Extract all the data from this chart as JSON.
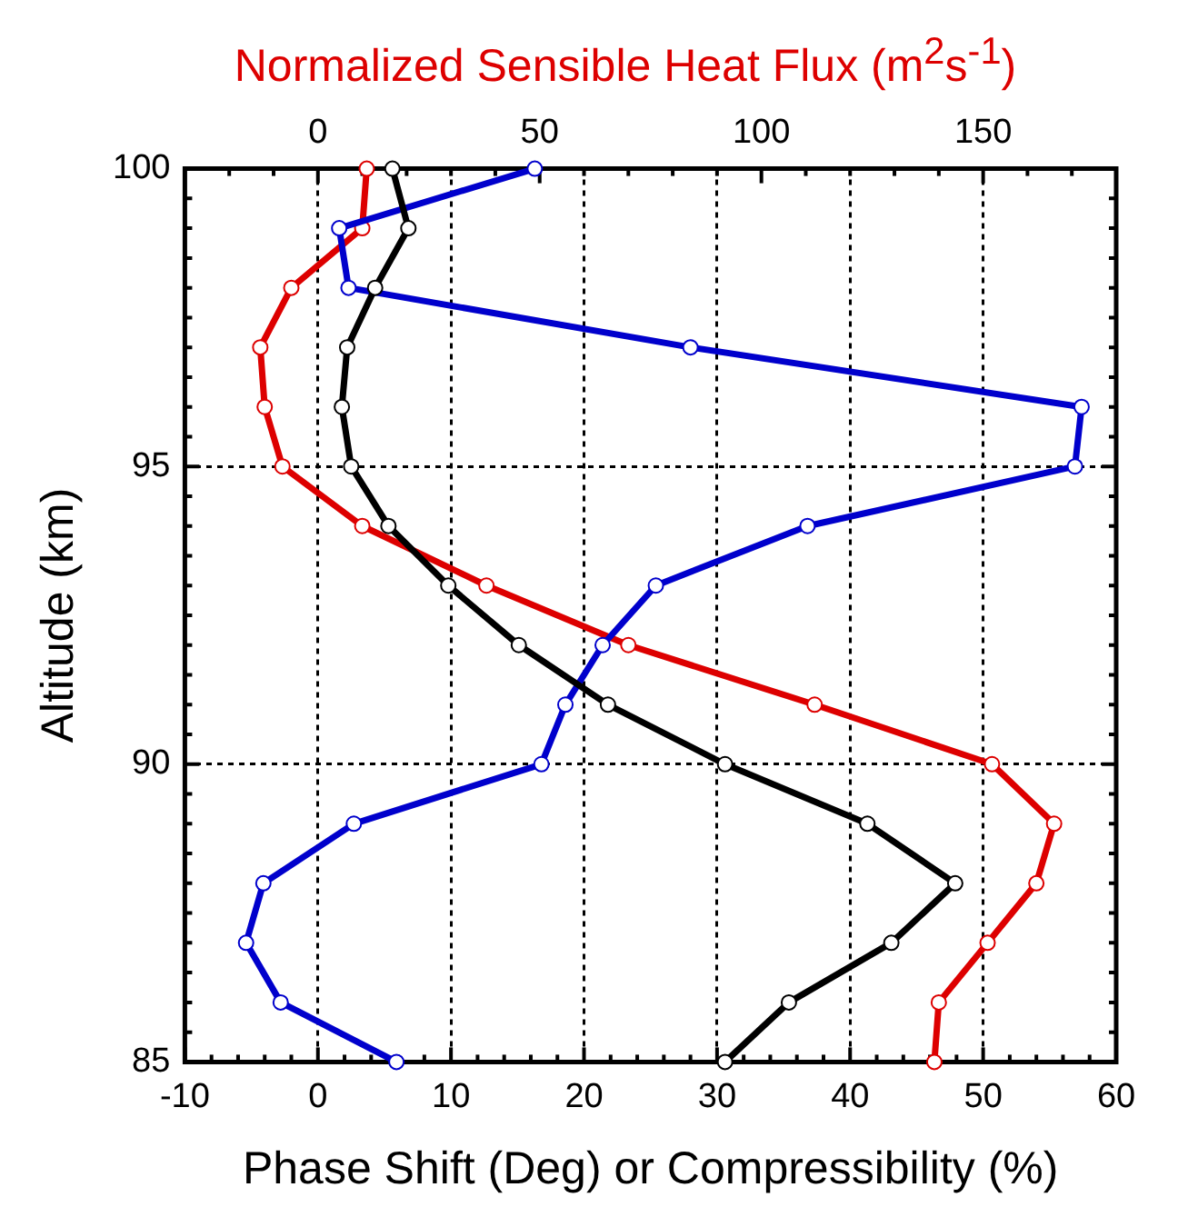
{
  "chart_data": {
    "type": "line",
    "x2label": "Normalized Sensible Heat Flux (m$^{2}$s$^{-1}$)",
    "xlabel": "Phase Shift (Deg) or Compressibility (%)",
    "ylabel": "Altitude (km)",
    "series": [
      {
        "color": "#000000",
        "x": [
          5.6,
          6.8,
          4.3,
          2.2,
          1.8,
          2.5,
          5.3,
          9.8,
          15.1,
          21.8,
          30.6,
          41.3,
          47.9,
          43.1,
          35.4,
          30.6
        ],
        "values": [
          100,
          99,
          98,
          97,
          96,
          95,
          94,
          93,
          92,
          91,
          90,
          89,
          88,
          87,
          86,
          85
        ]
      },
      {
        "color": "#0000cc",
        "x": [
          16.3,
          1.6,
          2.3,
          28.0,
          57.4,
          56.9,
          36.8,
          25.4,
          21.4,
          18.6,
          16.8,
          2.7,
          -4.1,
          -5.4,
          -2.8,
          5.9
        ],
        "values": [
          100,
          99,
          98,
          97,
          96,
          95,
          94,
          93,
          92,
          91,
          90,
          89,
          88,
          87,
          86,
          85
        ]
      },
      {
        "color": "#dd0000",
        "axis": "x2",
        "x": [
          11,
          10,
          -6,
          -13,
          -12,
          -8,
          10,
          38,
          70,
          112,
          152,
          166,
          162,
          151,
          140,
          139
        ],
        "values": [
          100,
          99,
          98,
          97,
          96,
          95,
          94,
          93,
          92,
          91,
          90,
          89,
          88,
          87,
          86,
          85
        ]
      }
    ],
    "xlim": [
      -10,
      60
    ],
    "xticks": [
      -10,
      {
        "value": -8,
        "label": null
      },
      {
        "value": -6,
        "label": null
      },
      {
        "value": -4,
        "label": null
      },
      {
        "value": -2,
        "label": null
      },
      0,
      {
        "value": 2,
        "label": null
      },
      {
        "value": 4,
        "label": null
      },
      {
        "value": 6,
        "label": null
      },
      {
        "value": 8,
        "label": null
      },
      10,
      {
        "value": 12,
        "label": null
      },
      {
        "value": 14,
        "label": null
      },
      {
        "value": 16,
        "label": null
      },
      {
        "value": 18,
        "label": null
      },
      20,
      {
        "value": 22,
        "label": null
      },
      {
        "value": 24,
        "label": null
      },
      {
        "value": 26,
        "label": null
      },
      {
        "value": 28,
        "label": null
      },
      30,
      {
        "value": 32,
        "label": null
      },
      {
        "value": 34,
        "label": null
      },
      {
        "value": 36,
        "label": null
      },
      {
        "value": 38,
        "label": null
      },
      40,
      {
        "value": 42,
        "label": null
      },
      {
        "value": 44,
        "label": null
      },
      {
        "value": 46,
        "label": null
      },
      {
        "value": 48,
        "label": null
      },
      50,
      {
        "value": 52,
        "label": null
      },
      {
        "value": 54,
        "label": null
      },
      {
        "value": 56,
        "label": null
      },
      {
        "value": 58,
        "label": null
      },
      60
    ],
    "x2lim": [
      -30,
      180
    ],
    "x2ticks": [
      {
        "value": -20,
        "label": null
      },
      {
        "value": -10,
        "label": null
      },
      0,
      {
        "value": 10,
        "label": null
      },
      {
        "value": 20,
        "label": null
      },
      {
        "value": 30,
        "label": null
      },
      {
        "value": 40,
        "label": null
      },
      50,
      {
        "value": 60,
        "label": null
      },
      {
        "value": 70,
        "label": null
      },
      {
        "value": 80,
        "label": null
      },
      {
        "value": 90,
        "label": null
      },
      100,
      {
        "value": 110,
        "label": null
      },
      {
        "value": 120,
        "label": null
      },
      {
        "value": 130,
        "label": null
      },
      {
        "value": 140,
        "label": null
      },
      150,
      {
        "value": 160,
        "label": null
      },
      {
        "value": 170,
        "label": null
      }
    ],
    "ylim": [
      85,
      100
    ],
    "yticks": [
      85,
      {
        "value": 85.5,
        "label": null
      },
      {
        "value": 86,
        "label": null
      },
      {
        "value": 86.5,
        "label": null
      },
      {
        "value": 87,
        "label": null
      },
      {
        "value": 87.5,
        "label": null
      },
      {
        "value": 88,
        "label": null
      },
      {
        "value": 88.5,
        "label": null
      },
      {
        "value": 89,
        "label": null
      },
      {
        "value": 89.5,
        "label": null
      },
      90,
      {
        "value": 90.5,
        "label": null
      },
      {
        "value": 91,
        "label": null
      },
      {
        "value": 91.5,
        "label": null
      },
      {
        "value": 92,
        "label": null
      },
      {
        "value": 92.5,
        "label": null
      },
      {
        "value": 93,
        "label": null
      },
      {
        "value": 93.5,
        "label": null
      },
      {
        "value": 94,
        "label": null
      },
      {
        "value": 94.5,
        "label": null
      },
      95,
      {
        "value": 95.5,
        "label": null
      },
      {
        "value": 96,
        "label": null
      },
      {
        "value": 96.5,
        "label": null
      },
      {
        "value": 97,
        "label": null
      },
      {
        "value": 97.5,
        "label": null
      },
      {
        "value": 98,
        "label": null
      },
      {
        "value": 98.5,
        "label": null
      },
      {
        "value": 99,
        "label": null
      },
      {
        "value": 99.5,
        "label": null
      },
      100
    ],
    "grid": true,
    "marker": "circle",
    "line_style": "solid",
    "legend": false
  }
}
